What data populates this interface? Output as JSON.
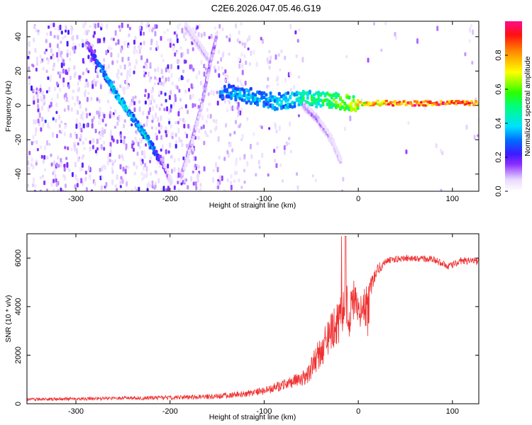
{
  "title": "C2E6.2026.047.05.46.G19",
  "chart_data": [
    {
      "type": "heatmap",
      "xlabel": "Height of straight line (km)",
      "ylabel": "Frequency (Hz)",
      "xlim": [
        -352,
        128
      ],
      "ylim": [
        -50,
        49
      ],
      "xticks": [
        -300,
        -200,
        -100,
        0,
        100
      ],
      "yticks": [
        -40,
        -20,
        0,
        20,
        40
      ],
      "colorbar": {
        "label": "Normalized spectral amplitude",
        "range": [
          0,
          1
        ],
        "ticks": [
          0.0,
          0.2,
          0.4,
          0.6,
          0.8
        ]
      },
      "features": [
        {
          "name": "descending-trace-1",
          "x": [
            -290,
            -275,
            -258,
            -240,
            -225,
            -212,
            -200
          ],
          "y": [
            36,
            22,
            6,
            -8,
            -20,
            -32,
            -45
          ],
          "amp": [
            0.2,
            0.35,
            0.45,
            0.4,
            0.45,
            0.25,
            0.1
          ]
        },
        {
          "name": "ascending-trace",
          "x": [
            -190,
            -178,
            -168,
            -160,
            -152
          ],
          "y": [
            -42,
            -20,
            0,
            22,
            40
          ],
          "amp": [
            0.15,
            0.15,
            0.15,
            0.18,
            0.15
          ]
        },
        {
          "name": "upper-trace",
          "x": [
            -185,
            -172,
            -162
          ],
          "y": [
            46,
            36,
            28
          ],
          "amp": [
            0.12,
            0.12,
            0.12
          ]
        },
        {
          "name": "main-band",
          "x": [
            -148,
            -120,
            -90,
            -60,
            -30,
            0,
            30,
            60,
            90,
            128
          ],
          "y": [
            8,
            6,
            2,
            4,
            3,
            1,
            1,
            1,
            1,
            1
          ],
          "amp": [
            0.35,
            0.4,
            0.4,
            0.5,
            0.6,
            0.75,
            0.9,
            0.95,
            0.95,
            0.95
          ]
        },
        {
          "name": "side-branch",
          "x": [
            -60,
            -45,
            -30,
            -20
          ],
          "y": [
            0,
            -8,
            -20,
            -33
          ],
          "amp": [
            0.15,
            0.15,
            0.12,
            0.1
          ]
        }
      ]
    },
    {
      "type": "line",
      "xlabel": "Height of straight line (km)",
      "ylabel": "SNR (10 * v/v)",
      "xlim": [
        -352,
        128
      ],
      "ylim": [
        0,
        7000
      ],
      "xticks": [
        -300,
        -200,
        -100,
        0,
        100
      ],
      "yticks": [
        0,
        2000,
        4000,
        6000
      ],
      "color": "#f03030",
      "series": [
        {
          "name": "SNR",
          "x": [
            -352,
            -300,
            -250,
            -200,
            -150,
            -110,
            -90,
            -70,
            -55,
            -48,
            -40,
            -30,
            -20,
            -15,
            -10,
            -5,
            0,
            10,
            20,
            30,
            50,
            80,
            95,
            110,
            128
          ],
          "y": [
            180,
            200,
            230,
            250,
            300,
            450,
            650,
            900,
            1100,
            1600,
            2200,
            2900,
            3400,
            4200,
            3700,
            4300,
            3600,
            4500,
            5500,
            5900,
            6000,
            5950,
            5650,
            5900,
            5850
          ],
          "noise": [
            60,
            70,
            80,
            90,
            110,
            150,
            200,
            250,
            320,
            500,
            700,
            800,
            900,
            1000,
            1000,
            900,
            800,
            500,
            250,
            150,
            130,
            140,
            150,
            150,
            150
          ]
        }
      ]
    }
  ]
}
